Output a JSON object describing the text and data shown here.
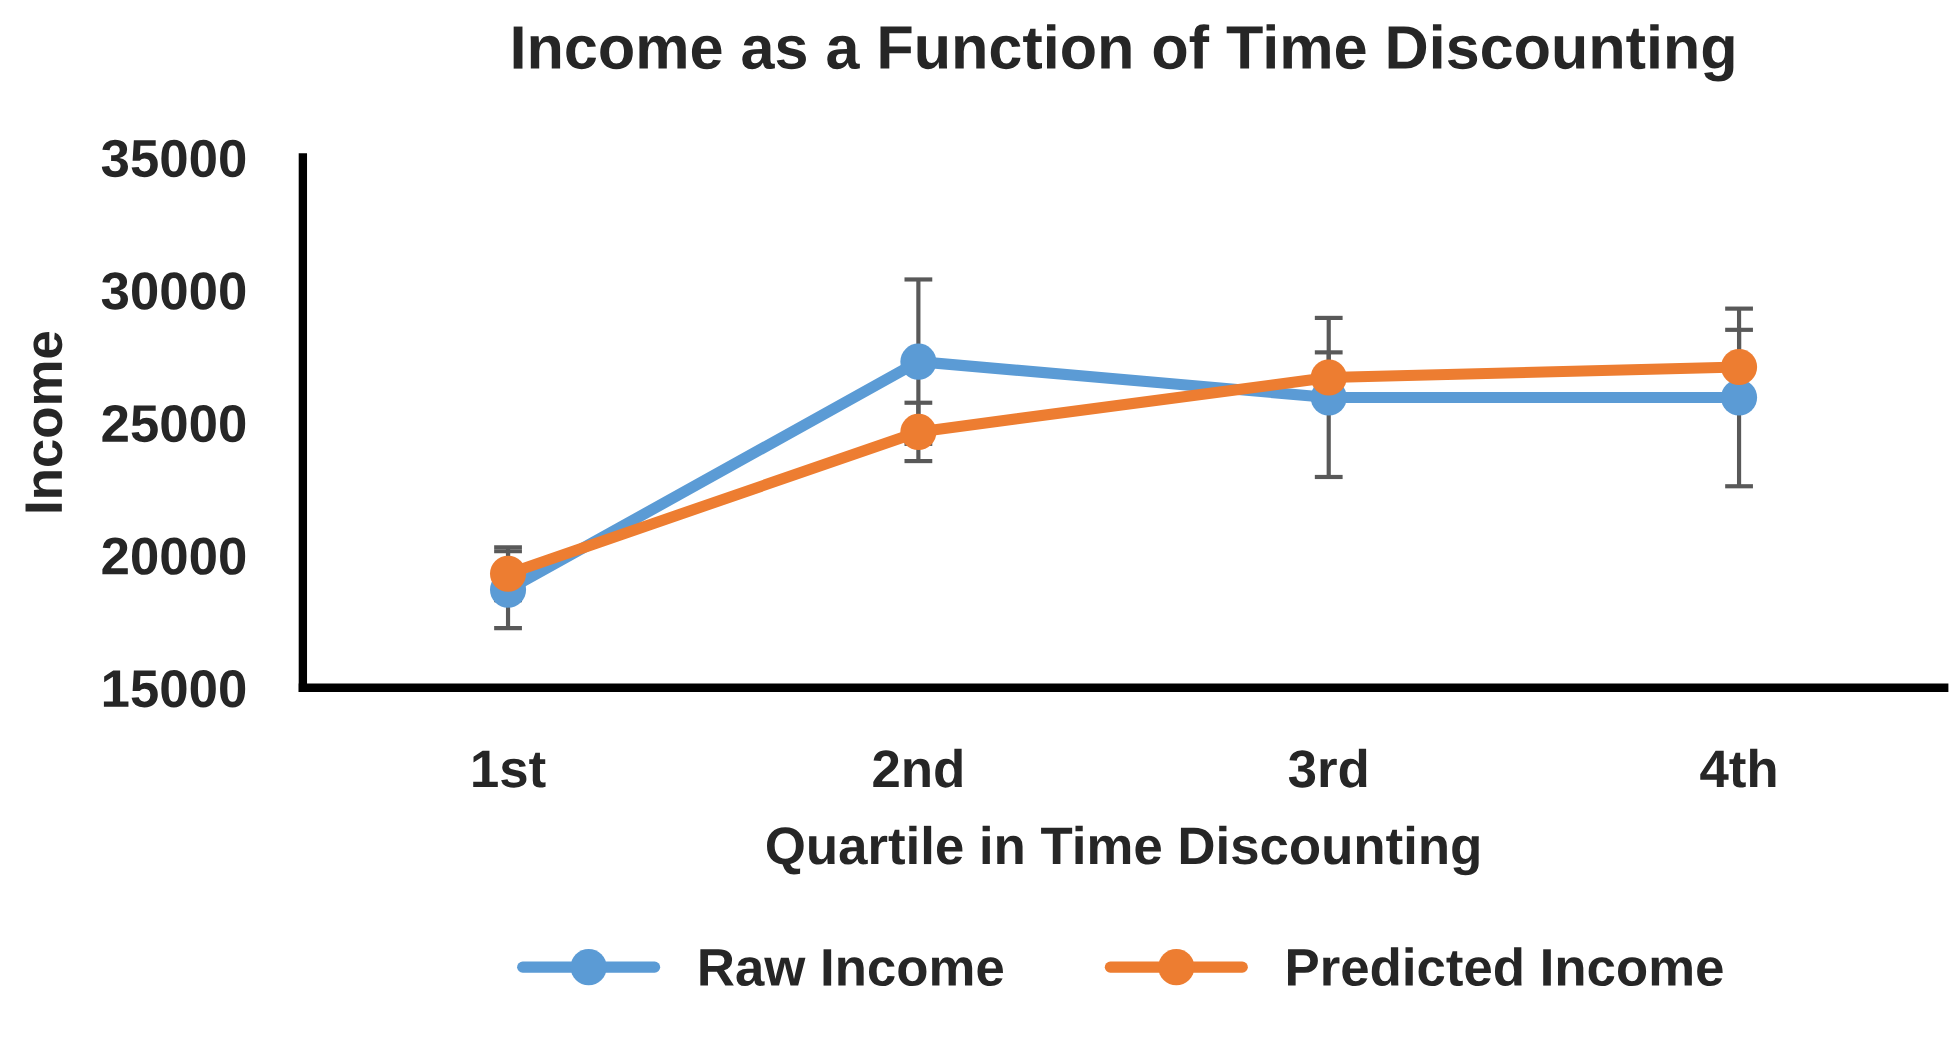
{
  "chart_data": {
    "type": "line",
    "title": "Income as a Function of Time Discounting",
    "xlabel": "Quartile in Time Discounting",
    "ylabel": "Income",
    "categories": [
      "1st",
      "2nd",
      "3rd",
      "4th"
    ],
    "series": [
      {
        "name": "Raw Income",
        "color": "#5b9bd5",
        "values": [
          18700,
          27300,
          25950,
          25950
        ],
        "errors": [
          1450,
          3100,
          3000,
          3350
        ]
      },
      {
        "name": "Predicted Income",
        "color": "#ed7d31",
        "values": [
          19300,
          24650,
          26700,
          27100
        ],
        "errors": [
          1000,
          1100,
          950,
          1400
        ]
      }
    ],
    "ylim": [
      15000,
      35000
    ],
    "yticks": [
      15000,
      20000,
      25000,
      30000,
      35000
    ],
    "grid": false,
    "legend": "bottom",
    "marker": "circle",
    "line_style": "solid"
  }
}
